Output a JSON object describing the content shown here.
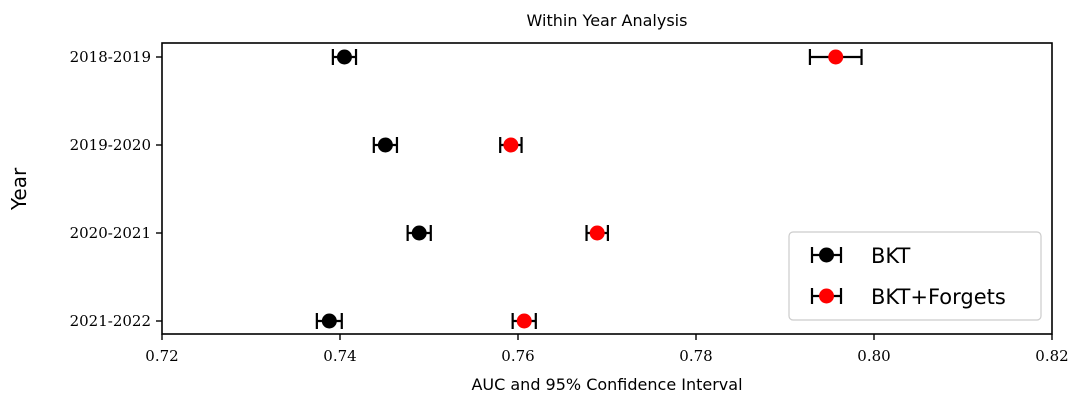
{
  "chart_data": {
    "type": "scatter",
    "title": "Within Year Analysis",
    "xlabel": "AUC and 95% Confidence Interval",
    "ylabel": "Year",
    "xlim": [
      0.72,
      0.82
    ],
    "x_ticks": [
      0.72,
      0.74,
      0.76,
      0.78,
      0.8,
      0.82
    ],
    "x_tick_labels": [
      "0.72",
      "0.74",
      "0.76",
      "0.78",
      "0.80",
      "0.82"
    ],
    "categories": [
      "2018-2019",
      "2019-2020",
      "2020-2021",
      "2021-2022"
    ],
    "legend_position": "bottom-right",
    "series": [
      {
        "name": "BKT",
        "color": "#000000",
        "values": [
          0.7405,
          0.7451,
          0.7489,
          0.7388
        ],
        "ci_low": [
          0.7392,
          0.7438,
          0.7476,
          0.7374
        ],
        "ci_high": [
          0.7418,
          0.7464,
          0.7502,
          0.7402
        ]
      },
      {
        "name": "BKT+Forgets",
        "color": "#ff0000",
        "values": [
          0.7957,
          0.7592,
          0.7689,
          0.7607
        ],
        "ci_low": [
          0.7928,
          0.758,
          0.7677,
          0.7594
        ],
        "ci_high": [
          0.7986,
          0.7604,
          0.7701,
          0.762
        ]
      }
    ]
  }
}
